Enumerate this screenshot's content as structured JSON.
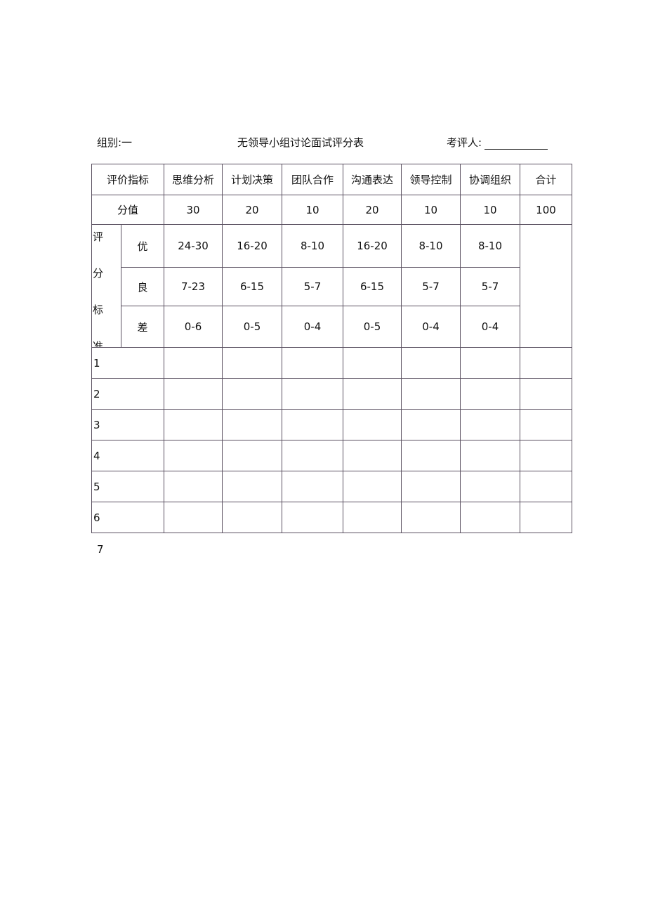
{
  "header": {
    "group": "组别:一",
    "title": "无领导小组讨论面试评分表",
    "examiner": "考评人:"
  },
  "columns": [
    "评价指标",
    "思维分析",
    "计划决策",
    "团队合作",
    "沟通表达",
    "领导控制",
    "协调组织",
    "合计"
  ],
  "score_row": {
    "label": "分值",
    "values": [
      "30",
      "20",
      "10",
      "20",
      "10",
      "10",
      "100"
    ]
  },
  "criteria_label": [
    "评",
    "分",
    "标",
    "准"
  ],
  "criteria": [
    {
      "grade": "优",
      "values": [
        "24-30",
        "16-20",
        "8-10",
        "16-20",
        "8-10",
        "8-10"
      ]
    },
    {
      "grade": "良",
      "values": [
        "7-23",
        "6-15",
        "5-7",
        "6-15",
        "5-7",
        "5-7"
      ]
    },
    {
      "grade": "差",
      "values": [
        "0-6",
        "0-5",
        "0-4",
        "0-5",
        "0-4",
        "0-4"
      ]
    }
  ],
  "candidates": [
    "1",
    "2",
    "3",
    "4",
    "5",
    "6"
  ],
  "trailing": "7"
}
